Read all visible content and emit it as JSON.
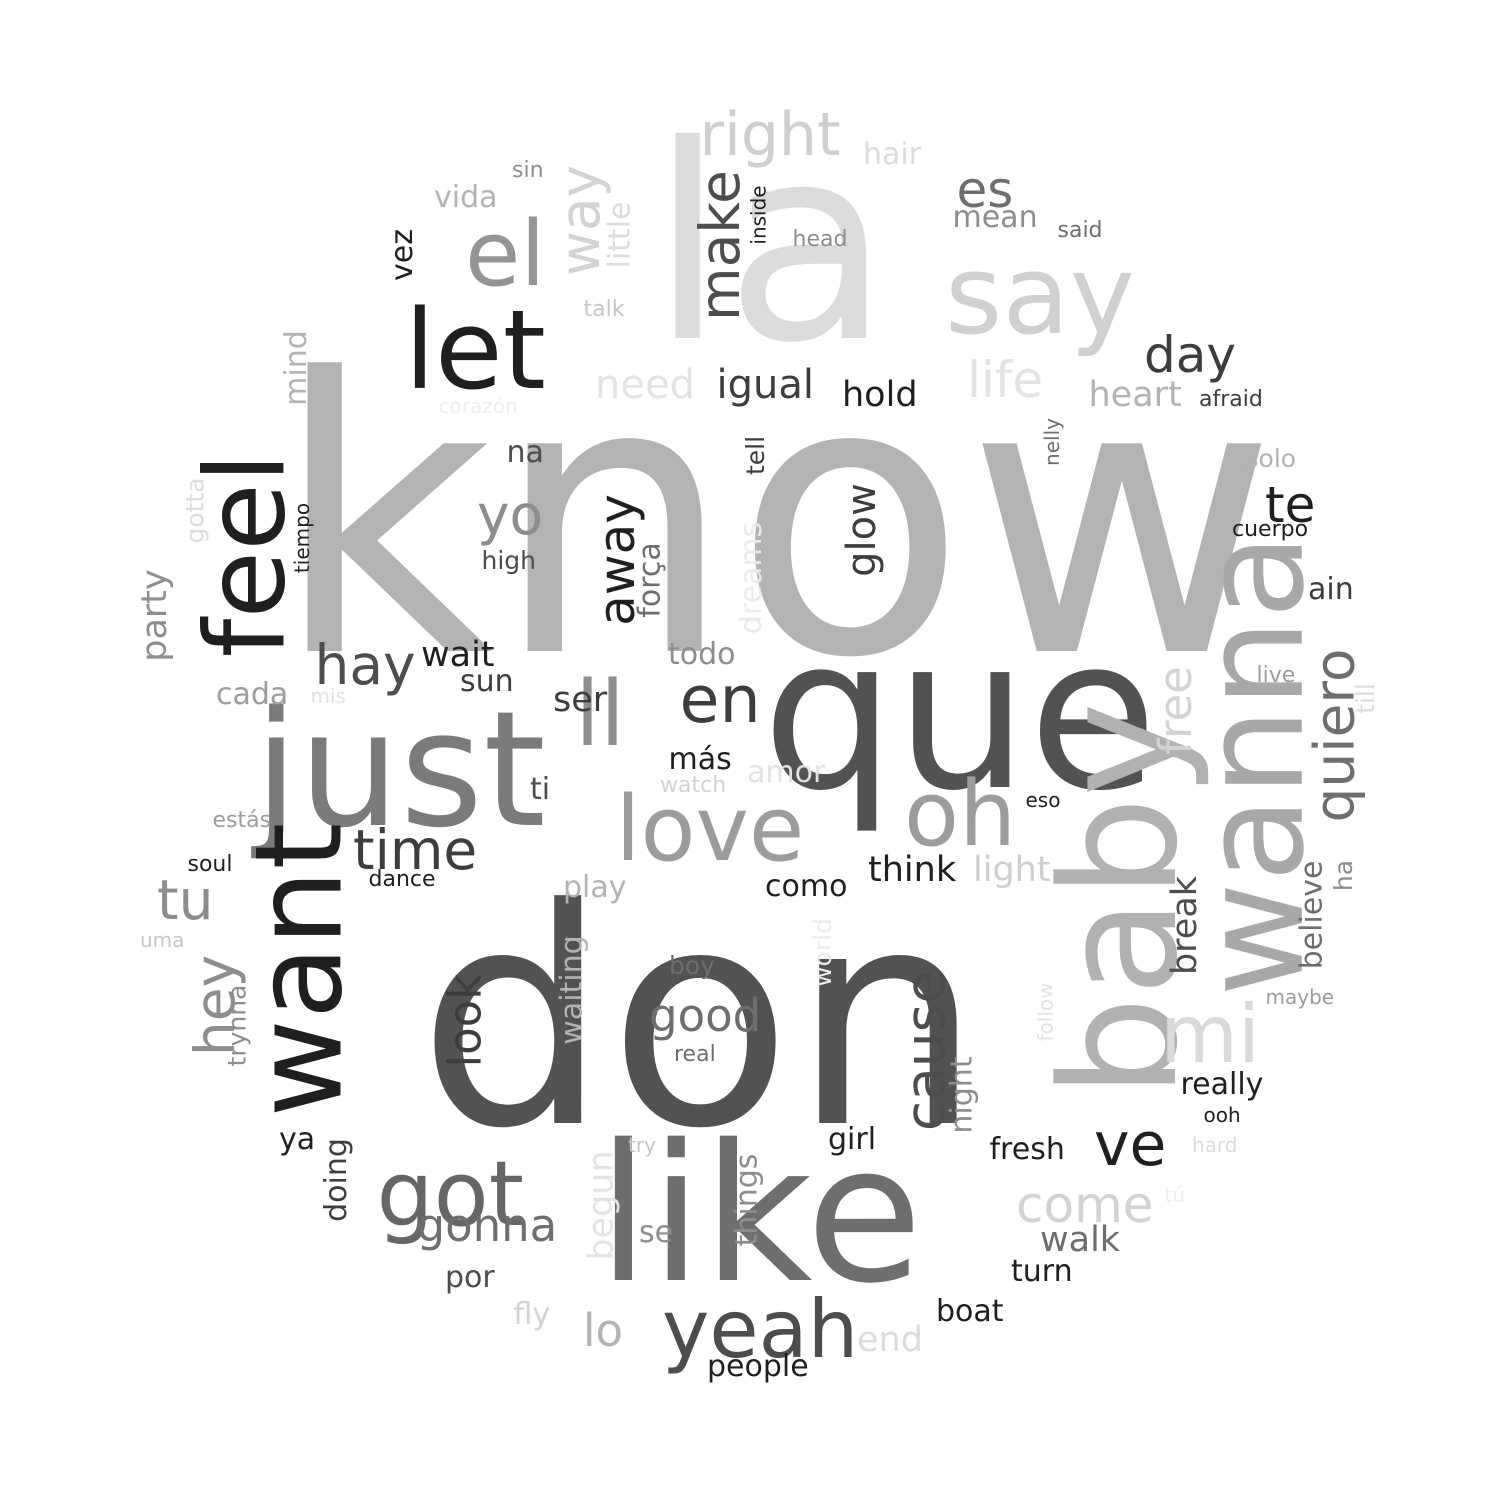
{
  "words": [
    {
      "text": "know",
      "color": "#b3b3b3"
    },
    {
      "text": "don",
      "color": "#525252"
    },
    {
      "text": "la",
      "color": "#dcdcdc"
    },
    {
      "text": "que",
      "color": "#525252"
    },
    {
      "text": "like",
      "color": "#6e6e6e"
    },
    {
      "text": "just",
      "color": "#7b7b7b"
    },
    {
      "text": "baby",
      "color": "#b1b1b1"
    },
    {
      "text": "wanna",
      "color": "#a8a8a8"
    },
    {
      "text": "want",
      "color": "#1f1f1f"
    },
    {
      "text": "feel",
      "color": "#1f1f1f"
    },
    {
      "text": "say",
      "color": "#d0d0d0"
    },
    {
      "text": "let",
      "color": "#1f1f1f"
    },
    {
      "text": "el",
      "color": "#949494"
    },
    {
      "text": "ll",
      "color": "#8d8d8d"
    },
    {
      "text": "love",
      "color": "#9c9c9c"
    },
    {
      "text": "oh",
      "color": "#9c9c9c"
    },
    {
      "text": "got",
      "color": "#666666"
    },
    {
      "text": "yeah",
      "color": "#4d4d4d"
    },
    {
      "text": "mi",
      "color": "#dadada"
    },
    {
      "text": "en",
      "color": "#3d3d3d"
    },
    {
      "text": "right",
      "color": "#cfcfcf"
    },
    {
      "text": "ve",
      "color": "#1f1f1f"
    },
    {
      "text": "quiero",
      "color": "#6e6e6e"
    },
    {
      "text": "way",
      "color": "#d3d3d3"
    },
    {
      "text": "make",
      "color": "#4d4d4d"
    },
    {
      "text": "hay",
      "color": "#4d4d4d"
    },
    {
      "text": "time",
      "color": "#3d3d3d"
    },
    {
      "text": "yo",
      "color": "#8d8d8d"
    },
    {
      "text": "tu",
      "color": "#8d8d8d"
    },
    {
      "text": "hey",
      "color": "#8d8d8d"
    },
    {
      "text": "cause",
      "color": "#4d4d4d"
    },
    {
      "text": "good",
      "color": "#6e6e6e"
    },
    {
      "text": "day",
      "color": "#3d3d3d"
    },
    {
      "text": "away",
      "color": "#1f1f1f"
    },
    {
      "text": "te",
      "color": "#1f1f1f"
    },
    {
      "text": "es",
      "color": "#6e6e6e"
    },
    {
      "text": "life",
      "color": "#e3e3e3"
    },
    {
      "text": "come",
      "color": "#d3d3d3"
    },
    {
      "text": "lo",
      "color": "#b3b3b3"
    },
    {
      "text": "free",
      "color": "#d3d3d3"
    },
    {
      "text": "look",
      "color": "#3d3d3d"
    },
    {
      "text": "gonna",
      "color": "#6e6e6e"
    },
    {
      "text": "igual",
      "color": "#3d3d3d"
    },
    {
      "text": "need",
      "color": "#e3e3e3"
    },
    {
      "text": "glow",
      "color": "#3d3d3d"
    },
    {
      "text": "heart",
      "color": "#b3b3b3"
    },
    {
      "text": "break",
      "color": "#4d4d4d"
    },
    {
      "text": "walk",
      "color": "#6e6e6e"
    },
    {
      "text": "party",
      "color": "#8d8d8d"
    },
    {
      "text": "little",
      "color": "#dcdcdc"
    },
    {
      "text": "ser",
      "color": "#3d3d3d"
    },
    {
      "text": "end",
      "color": "#dcdcdc"
    },
    {
      "text": "hold",
      "color": "#1f1f1f"
    },
    {
      "text": "think",
      "color": "#1f1f1f"
    },
    {
      "text": "light",
      "color": "#cfcfcf"
    },
    {
      "text": "mean",
      "color": "#8d8d8d"
    },
    {
      "text": "wait",
      "color": "#1f1f1f"
    },
    {
      "text": "todo",
      "color": "#8d8d8d"
    },
    {
      "text": "cada",
      "color": "#9c9c9c"
    },
    {
      "text": "really",
      "color": "#1f1f1f"
    },
    {
      "text": "fresh",
      "color": "#1f1f1f"
    },
    {
      "text": "turn",
      "color": "#1f1f1f"
    },
    {
      "text": "amor",
      "color": "#e3e3e3"
    },
    {
      "text": "como",
      "color": "#1f1f1f"
    },
    {
      "text": "girl",
      "color": "#1f1f1f"
    },
    {
      "text": "play",
      "color": "#b3b3b3"
    },
    {
      "text": "begun",
      "color": "#e3e3e3"
    },
    {
      "text": "things",
      "color": "#8d8d8d"
    },
    {
      "text": "fly",
      "color": "#d3d3d3"
    },
    {
      "text": "más",
      "color": "#1f1f1f"
    },
    {
      "text": "na",
      "color": "#4d4d4d"
    },
    {
      "text": "ain",
      "color": "#3d3d3d"
    },
    {
      "text": "força",
      "color": "#6e6e6e"
    },
    {
      "text": "mind",
      "color": "#b3b3b3"
    },
    {
      "text": "dreams",
      "color": "#ebebeb"
    },
    {
      "text": "night",
      "color": "#8d8d8d"
    },
    {
      "text": "trynna",
      "color": "#8d8d8d"
    },
    {
      "text": "doing",
      "color": "#3d3d3d"
    },
    {
      "text": "believe",
      "color": "#6e6e6e"
    },
    {
      "text": "waiting",
      "color": "#b3b3b3"
    },
    {
      "text": "ti",
      "color": "#4d4d4d"
    },
    {
      "text": "por",
      "color": "#4d4d4d"
    },
    {
      "text": "boat",
      "color": "#1f1f1f"
    },
    {
      "text": "people",
      "color": "#1f1f1f"
    },
    {
      "text": "vez",
      "color": "#1f1f1f"
    },
    {
      "text": "se",
      "color": "#8d8d8d"
    },
    {
      "text": "ya",
      "color": "#1f1f1f"
    },
    {
      "text": "sun",
      "color": "#3d3d3d"
    },
    {
      "text": "vida",
      "color": "#b3b3b3"
    },
    {
      "text": "hair",
      "color": "#dcdcdc"
    },
    {
      "text": "boy",
      "color": "#6e6e6e"
    },
    {
      "text": "solo",
      "color": "#b3b3b3"
    },
    {
      "text": "world",
      "color": "#ebebeb"
    },
    {
      "text": "tell",
      "color": "#3d3d3d"
    },
    {
      "text": "high",
      "color": "#4d4d4d"
    },
    {
      "text": "gotta",
      "color": "#dcdcdc"
    },
    {
      "text": "till",
      "color": "#dcdcdc"
    },
    {
      "text": "ha",
      "color": "#8d8d8d"
    },
    {
      "text": "dance",
      "color": "#1f1f1f"
    },
    {
      "text": "soul",
      "color": "#1f1f1f"
    },
    {
      "text": "afraid",
      "color": "#3d3d3d"
    },
    {
      "text": "live",
      "color": "#9c9c9c"
    },
    {
      "text": "real",
      "color": "#6e6e6e"
    },
    {
      "text": "cuerpo",
      "color": "#1f1f1f"
    },
    {
      "text": "maybe",
      "color": "#9c9c9c"
    },
    {
      "text": "said",
      "color": "#6e6e6e"
    },
    {
      "text": "talk",
      "color": "#c6c6c6"
    },
    {
      "text": "head",
      "color": "#8d8d8d"
    },
    {
      "text": "estás",
      "color": "#9c9c9c"
    },
    {
      "text": "watch",
      "color": "#d3d3d3"
    },
    {
      "text": "inside",
      "color": "#1f1f1f"
    },
    {
      "text": "sin",
      "color": "#8d8d8d"
    },
    {
      "text": "tiempo",
      "color": "#1f1f1f"
    },
    {
      "text": "corazón",
      "color": "#ededed"
    },
    {
      "text": "ooh",
      "color": "#1f1f1f"
    },
    {
      "text": "eso",
      "color": "#1f1f1f"
    },
    {
      "text": "try",
      "color": "#c6c6c6"
    },
    {
      "text": "hard",
      "color": "#dcdcdc"
    },
    {
      "text": "follow",
      "color": "#e3e3e3"
    },
    {
      "text": "nelly",
      "color": "#6e6e6e"
    },
    {
      "text": "uma",
      "color": "#c6c6c6"
    },
    {
      "text": "mis",
      "color": "#e3e3e3"
    },
    {
      "text": "tú",
      "color": "#ededed"
    }
  ]
}
